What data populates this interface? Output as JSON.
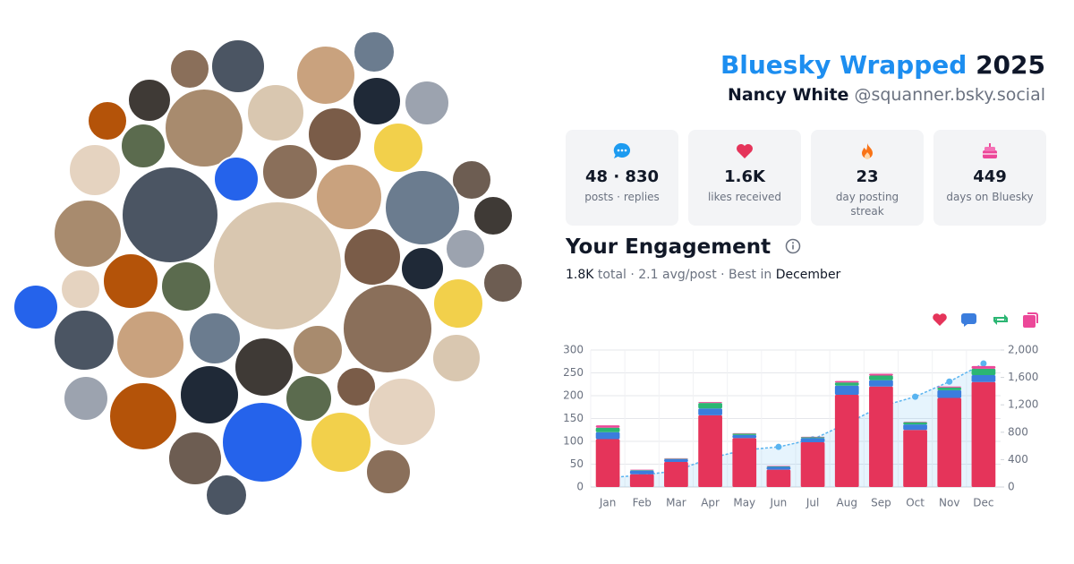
{
  "header": {
    "title": "Bluesky Wrapped",
    "year": "2025",
    "name": "Nancy White",
    "handle": "@squanner.bsky.social"
  },
  "stats": [
    {
      "value": "48 · 830",
      "label": "posts · replies"
    },
    {
      "value": "1.6K",
      "label": "likes received"
    },
    {
      "value": "23",
      "label": "day posting streak"
    },
    {
      "value": "449",
      "label": "days on Bluesky"
    }
  ],
  "engagement": {
    "title": "Your Engagement",
    "total": "1.8K",
    "summary": "total · 2.1 avg/post · Best in",
    "best_month": "December"
  },
  "chart_data": {
    "type": "bar",
    "stacked": true,
    "categories": [
      "Jan",
      "Feb",
      "Mar",
      "Apr",
      "May",
      "Jun",
      "Jul",
      "Aug",
      "Sep",
      "Oct",
      "Nov",
      "Dec"
    ],
    "series": [
      {
        "color": "#e5345a",
        "values": [
          105,
          28,
          55,
          157,
          107,
          38,
          98,
          202,
          220,
          125,
          195,
          230
        ]
      },
      {
        "color": "#3b7ddd",
        "values": [
          15,
          8,
          6,
          15,
          7,
          6,
          9,
          20,
          14,
          12,
          17,
          15
        ]
      },
      {
        "color": "#2bb673",
        "values": [
          10,
          1,
          1,
          12,
          3,
          1,
          2,
          7,
          10,
          5,
          6,
          14
        ]
      },
      {
        "color": "#ec4899",
        "values": [
          5,
          1,
          1,
          2,
          1,
          1,
          1,
          3,
          4,
          1,
          2,
          6
        ]
      },
      {
        "type": "line",
        "axis": "y2",
        "color": "#5ab4f0",
        "values": [
          135,
          173,
          236,
          422,
          540,
          586,
          696,
          928,
          1176,
          1319,
          1539,
          1804
        ]
      }
    ],
    "ylim": [
      0,
      300
    ],
    "yticks": [
      0,
      50,
      100,
      150,
      200,
      250,
      300
    ],
    "y2lim": [
      0,
      2000
    ],
    "y2ticks": [
      0,
      400,
      800,
      {
        "value": 1200,
        "label": "1,200"
      },
      {
        "value": 1600,
        "label": "1,600"
      },
      {
        "value": 2000,
        "label": "2,000"
      }
    ],
    "grid": true
  }
}
